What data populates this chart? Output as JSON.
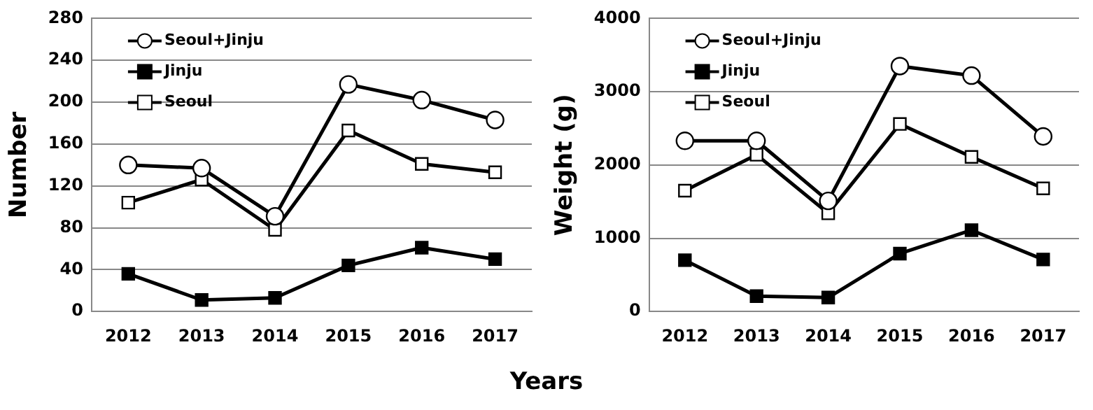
{
  "chart_data": [
    {
      "type": "line",
      "ylabel": "Number",
      "categories": [
        "2012",
        "2013",
        "2014",
        "2015",
        "2016",
        "2017"
      ],
      "series": [
        {
          "name": "Seoul+Jinju",
          "color": "#000000",
          "marker": "circle",
          "colors": [
            "#ffffff",
            "#ffffff",
            "#ffffff",
            "#ffffff",
            "#ffffff",
            "#ffffff"
          ],
          "values": [
            140,
            137,
            91,
            217,
            202,
            183
          ]
        },
        {
          "name": "Jinju",
          "color": "#000000",
          "marker": "square",
          "colors": [
            "#000000",
            "#000000",
            "#000000",
            "#000000",
            "#000000",
            "#000000"
          ],
          "values": [
            36,
            11,
            13,
            44,
            61,
            50
          ]
        },
        {
          "name": "Seoul",
          "color": "#000000",
          "marker": "square",
          "colors": [
            "#ffffff",
            "#ffffff",
            "#ffffff",
            "#ffffff",
            "#ffffff",
            "#ffffff"
          ],
          "values": [
            104,
            126,
            78,
            173,
            141,
            133
          ]
        }
      ],
      "ylim": [
        0,
        280
      ],
      "yticks": [
        0,
        40,
        80,
        120,
        160,
        200,
        240,
        280
      ],
      "grid": "y",
      "legend": "top left"
    },
    {
      "type": "line",
      "ylabel": "Weight (g)",
      "xlabel": "Years",
      "categories": [
        "2012",
        "2013",
        "2014",
        "2015",
        "2016",
        "2017"
      ],
      "series": [
        {
          "name": "Seoul+Jinju",
          "color": "#000000",
          "marker": "circle",
          "colors": [
            "#ffffff",
            "#ffffff",
            "#ffffff",
            "#ffffff",
            "#ffffff",
            "#ffffff"
          ],
          "values": [
            2330,
            2330,
            1510,
            3350,
            3220,
            2390
          ]
        },
        {
          "name": "Jinju",
          "color": "#000000",
          "marker": "square",
          "colors": [
            "#000000",
            "#000000",
            "#000000",
            "#000000",
            "#000000",
            "#000000"
          ],
          "values": [
            700,
            210,
            190,
            790,
            1110,
            710
          ]
        },
        {
          "name": "Seoul",
          "color": "#000000",
          "marker": "square",
          "colors": [
            "#ffffff",
            "#ffffff",
            "#ffffff",
            "#ffffff",
            "#ffffff",
            "#ffffff"
          ],
          "values": [
            1650,
            2140,
            1340,
            2560,
            2110,
            1680
          ]
        }
      ],
      "ylim": [
        0,
        4000
      ],
      "yticks": [
        0,
        1000,
        2000,
        3000,
        4000
      ],
      "grid": "y",
      "legend": "top left"
    }
  ]
}
